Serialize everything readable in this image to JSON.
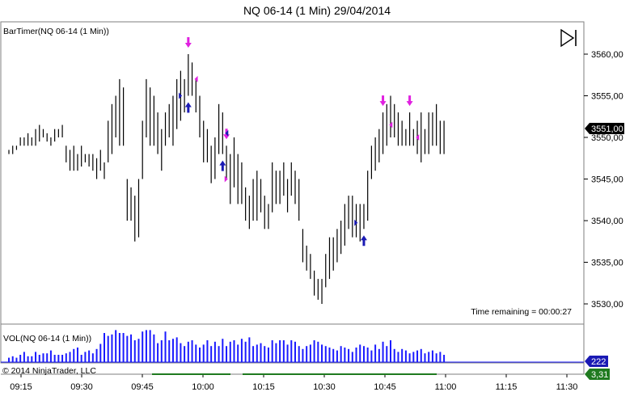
{
  "title": "NQ 06-14 (1 Min)  29/04/2014",
  "price_panel_label": "BarTimer(NQ 06-14 (1 Min))",
  "volume_panel_label": "VOL(NQ 06-14 (1 Min))",
  "time_remaining": "Time remaining = 00:00:27",
  "copyright": "© 2014 NinjaTrader, LLC",
  "play_icon": "skip-forward-icon",
  "colors": {
    "bar": "#000000",
    "volume": "#1a1aff",
    "up_arrow": "#1a1ab4",
    "down_arrow": "#e020e0",
    "volume_badge": "#1a1ab4",
    "small_badge": "#1f7a1f",
    "line_green": "#1f7a1f"
  },
  "chart_data": {
    "type": "bar",
    "price": {
      "y_ticks": [
        "3560,00",
        "3555,00",
        "3550,00",
        "3545,00",
        "3540,00",
        "3535,00",
        "3530,00"
      ],
      "y_tick_values": [
        3560,
        3555,
        3550,
        3545,
        3540,
        3535,
        3530
      ],
      "ylim": [
        3528.5,
        3564.3
      ],
      "last_price": "3551,00",
      "last_price_value": 3551,
      "bars": [
        [
          3548.5,
          3548
        ],
        [
          3549,
          3548
        ],
        [
          3549,
          3548.5
        ],
        [
          3550,
          3549
        ],
        [
          3550,
          3549
        ],
        [
          3550.5,
          3549
        ],
        [
          3550,
          3549
        ],
        [
          3551,
          3549
        ],
        [
          3551.5,
          3549.5
        ],
        [
          3551,
          3550
        ],
        [
          3550.5,
          3549.5
        ],
        [
          3550,
          3549
        ],
        [
          3551,
          3549.5
        ],
        [
          3551,
          3550
        ],
        [
          3551.5,
          3550
        ],
        [
          3549,
          3547
        ],
        [
          3548.5,
          3546
        ],
        [
          3549,
          3546
        ],
        [
          3548,
          3546
        ],
        [
          3549,
          3546.5
        ],
        [
          3548,
          3547
        ],
        [
          3548,
          3546.5
        ],
        [
          3548,
          3546
        ],
        [
          3547.5,
          3545
        ],
        [
          3548.5,
          3546
        ],
        [
          3547,
          3545
        ],
        [
          3552,
          3547
        ],
        [
          3554,
          3548
        ],
        [
          3555,
          3550
        ],
        [
          3557,
          3549
        ],
        [
          3556,
          3549
        ],
        [
          3545,
          3540
        ],
        [
          3544,
          3540
        ],
        [
          3543,
          3537.5
        ],
        [
          3545,
          3538
        ],
        [
          3552,
          3545
        ],
        [
          3557,
          3550
        ],
        [
          3556,
          3549
        ],
        [
          3555,
          3549
        ],
        [
          3553,
          3548
        ],
        [
          3551,
          3546
        ],
        [
          3553,
          3549
        ],
        [
          3554,
          3550
        ],
        [
          3555,
          3549
        ],
        [
          3557,
          3551
        ],
        [
          3558,
          3552
        ],
        [
          3557,
          3553
        ],
        [
          3560,
          3555
        ],
        [
          3559,
          3555
        ],
        [
          3557,
          3553
        ],
        [
          3555,
          3550
        ],
        [
          3552,
          3547
        ],
        [
          3551,
          3547
        ],
        [
          3549,
          3544.5
        ],
        [
          3550,
          3545
        ],
        [
          3554,
          3548
        ],
        [
          3553,
          3548
        ],
        [
          3549,
          3545
        ],
        [
          3548,
          3542
        ],
        [
          3550,
          3544
        ],
        [
          3548,
          3542
        ],
        [
          3547,
          3542
        ],
        [
          3544,
          3540
        ],
        [
          3543,
          3539
        ],
        [
          3545,
          3540
        ],
        [
          3546,
          3540
        ],
        [
          3545,
          3541
        ],
        [
          3543,
          3539
        ],
        [
          3542,
          3539
        ],
        [
          3547,
          3541
        ],
        [
          3546,
          3542
        ],
        [
          3546,
          3542
        ],
        [
          3547,
          3543
        ],
        [
          3545,
          3541
        ],
        [
          3547,
          3543
        ],
        [
          3546,
          3542
        ],
        [
          3545,
          3540
        ],
        [
          3539,
          3535
        ],
        [
          3537,
          3534
        ],
        [
          3536,
          3533
        ],
        [
          3534,
          3531
        ],
        [
          3533,
          3530.5
        ],
        [
          3533,
          3530
        ],
        [
          3536,
          3532
        ],
        [
          3538,
          3533
        ],
        [
          3538,
          3534
        ],
        [
          3539,
          3535
        ],
        [
          3540,
          3536
        ],
        [
          3542,
          3537
        ],
        [
          3543,
          3539
        ],
        [
          3543,
          3538
        ],
        [
          3542,
          3538
        ],
        [
          3542,
          3537.5
        ],
        [
          3542,
          3539
        ],
        [
          3546,
          3540
        ],
        [
          3549,
          3545
        ],
        [
          3550,
          3546
        ],
        [
          3551,
          3547
        ],
        [
          3553,
          3548
        ],
        [
          3554,
          3549
        ],
        [
          3555,
          3550
        ],
        [
          3554,
          3550
        ],
        [
          3553,
          3549
        ],
        [
          3552,
          3549
        ],
        [
          3551,
          3549
        ],
        [
          3553,
          3549
        ],
        [
          3551,
          3549
        ],
        [
          3552,
          3548
        ],
        [
          3553,
          3547
        ],
        [
          3551,
          3548
        ],
        [
          3553,
          3548
        ],
        [
          3553,
          3549
        ],
        [
          3554,
          3549
        ],
        [
          3552,
          3548
        ],
        [
          3552,
          3548
        ]
      ]
    },
    "volume": {
      "last_volume": "222",
      "values": [
        6,
        8,
        6,
        10,
        14,
        8,
        8,
        14,
        10,
        12,
        12,
        16,
        10,
        10,
        10,
        12,
        14,
        18,
        20,
        10,
        14,
        16,
        12,
        18,
        25,
        40,
        36,
        38,
        44,
        40,
        40,
        36,
        38,
        30,
        32,
        42,
        44,
        44,
        38,
        26,
        30,
        42,
        30,
        32,
        34,
        26,
        22,
        28,
        30,
        24,
        20,
        24,
        30,
        22,
        28,
        22,
        32,
        22,
        28,
        30,
        24,
        32,
        28,
        34,
        22,
        24,
        26,
        22,
        20,
        30,
        26,
        30,
        30,
        24,
        30,
        28,
        22,
        18,
        22,
        24,
        30,
        28,
        24,
        22,
        20,
        18,
        16,
        22,
        20,
        18,
        14,
        20,
        24,
        22,
        20,
        16,
        24,
        18,
        28,
        22,
        30,
        18,
        14,
        18,
        16,
        12,
        14,
        16,
        18,
        12,
        14,
        16,
        12,
        14,
        10
      ],
      "small_badge": "3,31"
    },
    "x_ticks": [
      "09:15",
      "09:30",
      "09:45",
      "10:00",
      "10:15",
      "10:30",
      "10:45",
      "11:00",
      "11:15",
      "11:30"
    ],
    "signals": {
      "up": [
        47,
        56,
        93
      ],
      "down": [
        47,
        57,
        98,
        105
      ],
      "right_tri": [
        46,
        58,
        92
      ],
      "left_tri": [
        48,
        56,
        99,
        106
      ]
    }
  }
}
